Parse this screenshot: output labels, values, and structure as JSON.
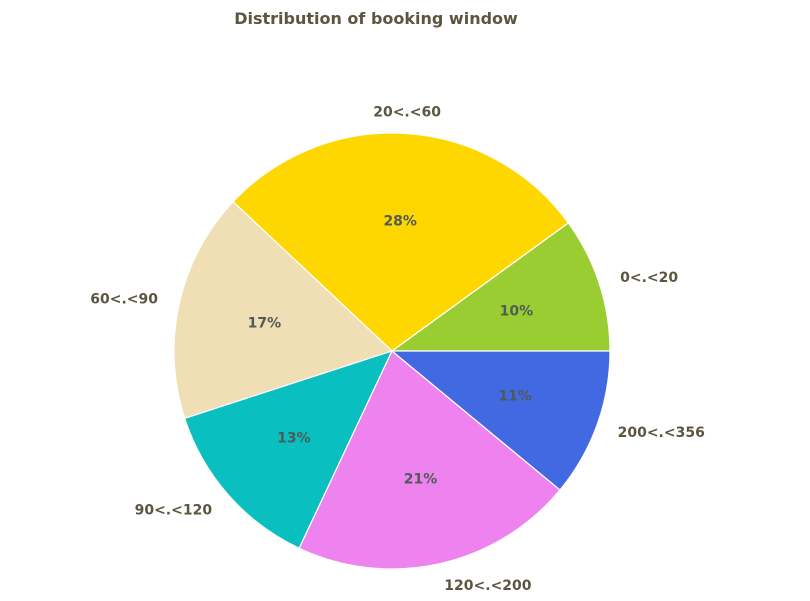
{
  "chart_data": {
    "type": "pie",
    "title": "Distribution of booking window",
    "start_angle_deg": 0,
    "direction": "counterclockwise",
    "legend": "none",
    "slices": [
      {
        "label": "0<.<20",
        "value": 10,
        "pct_label": "10%",
        "color": "#9ACD32"
      },
      {
        "label": "20<.<60",
        "value": 28,
        "pct_label": "28%",
        "color": "#FFD700"
      },
      {
        "label": "60<.<90",
        "value": 17,
        "pct_label": "17%",
        "color": "#F0DEB4"
      },
      {
        "label": "90<.<120",
        "value": 13,
        "pct_label": "13%",
        "color": "#0ABFBF"
      },
      {
        "label": "120<.<200",
        "value": 21,
        "pct_label": "21%",
        "color": "#EE82EE"
      },
      {
        "label": "200<.<356",
        "value": 11,
        "pct_label": "11%",
        "color": "#4169E1"
      }
    ]
  }
}
